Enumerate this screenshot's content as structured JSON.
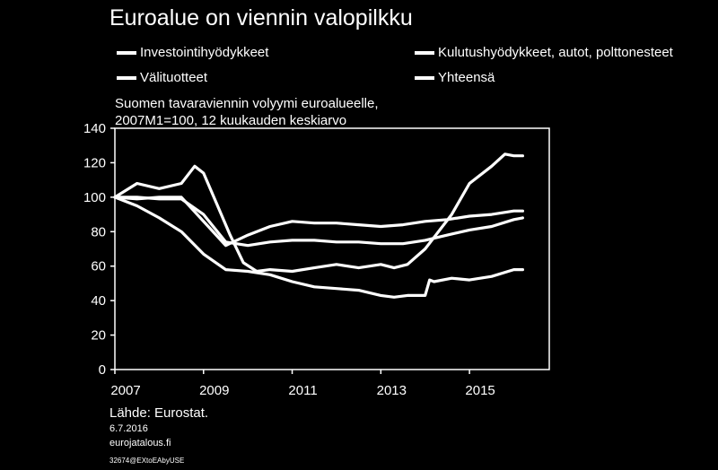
{
  "title": "Euroalue on viennin valopilkku",
  "source": "Lähde: Eurostat.",
  "date": "6.7.2016",
  "site": "eurojatalous.fi",
  "code": "32674@EXtoEAbyUSE",
  "chart_data": {
    "type": "line",
    "subtitle": [
      "Suomen tavaraviennin volyymi euroalueelle,",
      "2007M1=100, 12 kuukauden keskiarvo"
    ],
    "ylim": [
      0,
      140
    ],
    "yticks": [
      "0",
      "20",
      "40",
      "60",
      "80",
      "100",
      "120",
      "140"
    ],
    "xlim": [
      2007,
      2016.8
    ],
    "xticks": [
      2007,
      2009,
      2011,
      2013,
      2015
    ],
    "xtick_labels": [
      "2007",
      "2009",
      "2011",
      "2013",
      "2015"
    ],
    "grid": false,
    "legend_position": "top",
    "line_color": "#ffffff",
    "series": [
      {
        "name": "Investointihyödykkeet",
        "x": [
          2007,
          2007.5,
          2008,
          2008.5,
          2008.8,
          2009,
          2009.3,
          2009.6,
          2009.9,
          2010.2,
          2010.5,
          2011,
          2011.5,
          2012,
          2012.5,
          2013,
          2013.3,
          2013.6,
          2014,
          2014.3,
          2014.6,
          2015,
          2015.5,
          2015.8,
          2016,
          2016.2
        ],
        "y": [
          100,
          108,
          105,
          108,
          118,
          114,
          96,
          78,
          62,
          57,
          58,
          57,
          59,
          61,
          59,
          61,
          59,
          61,
          70,
          80,
          90,
          108,
          118,
          125,
          124,
          124
        ]
      },
      {
        "name": "Kulutushyödykkeet, autot, polttonesteet",
        "x": [
          2007,
          2007.5,
          2008,
          2008.5,
          2009,
          2009.5,
          2010,
          2010.5,
          2011,
          2011.5,
          2012,
          2012.5,
          2013,
          2013.5,
          2014,
          2014.5,
          2015,
          2015.5,
          2016,
          2016.2
        ],
        "y": [
          100,
          99,
          100,
          100,
          86,
          72,
          78,
          83,
          86,
          85,
          85,
          84,
          83,
          84,
          86,
          87,
          89,
          90,
          92,
          92
        ]
      },
      {
        "name": "Välituotteet",
        "x": [
          2007,
          2007.5,
          2008,
          2008.5,
          2009,
          2009.5,
          2010,
          2010.5,
          2011,
          2011.5,
          2012,
          2012.5,
          2013,
          2013.3,
          2013.6,
          2014,
          2014.1,
          2014.2,
          2014.6,
          2015,
          2015.5,
          2016,
          2016.2
        ],
        "y": [
          100,
          95,
          88,
          80,
          67,
          58,
          57,
          55,
          51,
          48,
          47,
          46,
          43,
          42,
          43,
          43,
          52,
          51,
          53,
          52,
          54,
          58,
          58
        ]
      },
      {
        "name": "Yhteensä",
        "x": [
          2007,
          2007.5,
          2008,
          2008.5,
          2009,
          2009.5,
          2010,
          2010.5,
          2011,
          2011.5,
          2012,
          2012.5,
          2013,
          2013.5,
          2014,
          2014.5,
          2015,
          2015.5,
          2016,
          2016.2
        ],
        "y": [
          100,
          100,
          99,
          99,
          90,
          74,
          72,
          74,
          75,
          75,
          74,
          74,
          73,
          73,
          75,
          78,
          81,
          83,
          87,
          88
        ]
      }
    ]
  }
}
